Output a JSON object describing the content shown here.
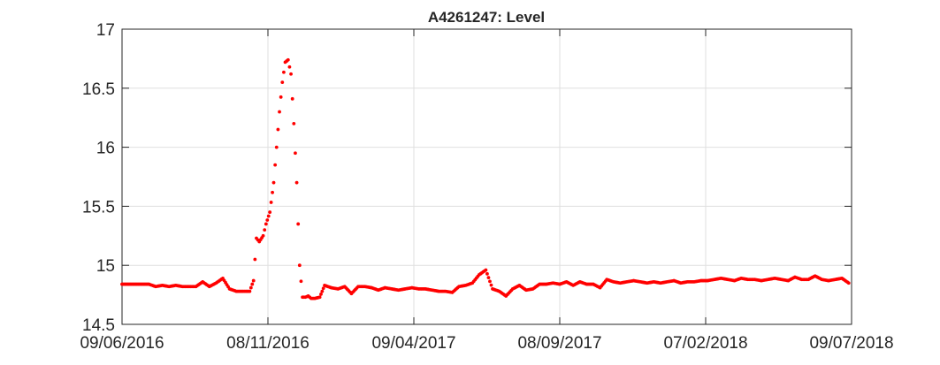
{
  "chart_data": {
    "type": "scatter",
    "title": "A4261247: Level",
    "xlabel": "",
    "ylabel": "",
    "x_axis": {
      "type": "date",
      "range": [
        "2016-06-09",
        "2018-07-09"
      ],
      "tick_values": [
        "2016-06-09",
        "2016-11-08",
        "2017-04-09",
        "2017-09-08",
        "2018-02-07",
        "2018-07-09"
      ],
      "tick_labels": [
        "09/06/2016",
        "08/11/2016",
        "09/04/2017",
        "08/09/2017",
        "07/02/2018",
        "09/07/2018"
      ]
    },
    "y_axis": {
      "range": [
        14.5,
        17
      ],
      "tick_values": [
        14.5,
        15,
        15.5,
        16,
        16.5,
        17
      ],
      "tick_labels": [
        "14.5",
        "15",
        "15.5",
        "16",
        "16.5",
        "17"
      ]
    },
    "grid": true,
    "marker_color": "#ff0000",
    "series": [
      {
        "x": [
          "2016-06-09",
          "2016-06-16",
          "2016-06-23",
          "2016-06-30",
          "2016-07-07",
          "2016-07-14",
          "2016-07-21",
          "2016-07-28",
          "2016-08-04",
          "2016-08-11",
          "2016-08-18",
          "2016-08-25",
          "2016-09-01",
          "2016-09-08",
          "2016-09-15",
          "2016-09-22",
          "2016-09-29",
          "2016-10-06",
          "2016-10-13",
          "2016-10-16",
          "2016-10-20",
          "2016-10-24",
          "2016-10-27",
          "2016-10-30",
          "2016-11-03",
          "2016-11-06",
          "2016-11-10",
          "2016-11-14",
          "2016-11-17",
          "2016-11-20",
          "2016-11-23",
          "2016-11-26",
          "2016-11-29",
          "2016-12-02",
          "2016-12-05",
          "2016-12-08",
          "2016-12-11",
          "2016-12-14",
          "2016-12-17",
          "2016-12-20",
          "2016-12-23",
          "2016-12-27",
          "2017-01-01",
          "2017-01-06",
          "2017-01-13",
          "2017-01-20",
          "2017-01-27",
          "2017-02-03",
          "2017-02-10",
          "2017-02-17",
          "2017-02-24",
          "2017-03-03",
          "2017-03-10",
          "2017-03-17",
          "2017-03-24",
          "2017-03-31",
          "2017-04-07",
          "2017-04-14",
          "2017-04-21",
          "2017-04-28",
          "2017-05-05",
          "2017-05-12",
          "2017-05-19",
          "2017-05-26",
          "2017-06-02",
          "2017-06-09",
          "2017-06-16",
          "2017-06-23",
          "2017-06-30",
          "2017-07-07",
          "2017-07-14",
          "2017-07-21",
          "2017-07-28",
          "2017-08-04",
          "2017-08-11",
          "2017-08-18",
          "2017-08-25",
          "2017-09-01",
          "2017-09-08",
          "2017-09-15",
          "2017-09-22",
          "2017-09-29",
          "2017-10-06",
          "2017-10-13",
          "2017-10-20",
          "2017-10-27",
          "2017-11-03",
          "2017-11-10",
          "2017-11-17",
          "2017-11-24",
          "2017-12-01",
          "2017-12-08",
          "2017-12-15",
          "2017-12-22",
          "2017-12-29",
          "2018-01-05",
          "2018-01-12",
          "2018-01-19",
          "2018-01-26",
          "2018-02-02",
          "2018-02-09",
          "2018-02-16",
          "2018-02-23",
          "2018-03-02",
          "2018-03-09",
          "2018-03-16",
          "2018-03-23",
          "2018-03-30",
          "2018-04-06",
          "2018-04-13",
          "2018-04-20",
          "2018-04-27",
          "2018-05-04",
          "2018-05-11",
          "2018-05-18",
          "2018-05-25",
          "2018-06-01",
          "2018-06-08",
          "2018-06-15",
          "2018-06-22",
          "2018-06-29",
          "2018-07-06"
        ],
        "y": [
          14.84,
          14.84,
          14.84,
          14.84,
          14.84,
          14.82,
          14.83,
          14.82,
          14.83,
          14.82,
          14.82,
          14.82,
          14.86,
          14.82,
          14.85,
          14.89,
          14.8,
          14.78,
          14.78,
          14.78,
          14.78,
          14.87,
          15.23,
          15.2,
          15.25,
          15.35,
          15.45,
          15.7,
          16.0,
          16.3,
          16.55,
          16.72,
          16.74,
          16.62,
          16.2,
          15.7,
          15.0,
          14.73,
          14.73,
          14.74,
          14.72,
          14.72,
          14.73,
          14.83,
          14.81,
          14.8,
          14.82,
          14.76,
          14.82,
          14.82,
          14.81,
          14.79,
          14.81,
          14.8,
          14.79,
          14.8,
          14.81,
          14.8,
          14.8,
          14.79,
          14.78,
          14.78,
          14.77,
          14.82,
          14.83,
          14.85,
          14.92,
          14.96,
          14.8,
          14.78,
          14.74,
          14.8,
          14.83,
          14.79,
          14.8,
          14.84,
          14.84,
          14.85,
          14.84,
          14.86,
          14.83,
          14.86,
          14.84,
          14.84,
          14.81,
          14.88,
          14.86,
          14.85,
          14.86,
          14.87,
          14.86,
          14.85,
          14.86,
          14.85,
          14.86,
          14.87,
          14.85,
          14.86,
          14.86,
          14.87,
          14.87,
          14.88,
          14.89,
          14.88,
          14.87,
          14.89,
          14.88,
          14.88,
          14.87,
          14.88,
          14.89,
          14.88,
          14.87,
          14.9,
          14.88,
          14.88,
          14.91,
          14.88,
          14.87,
          14.88,
          14.89,
          14.85
        ]
      }
    ]
  }
}
